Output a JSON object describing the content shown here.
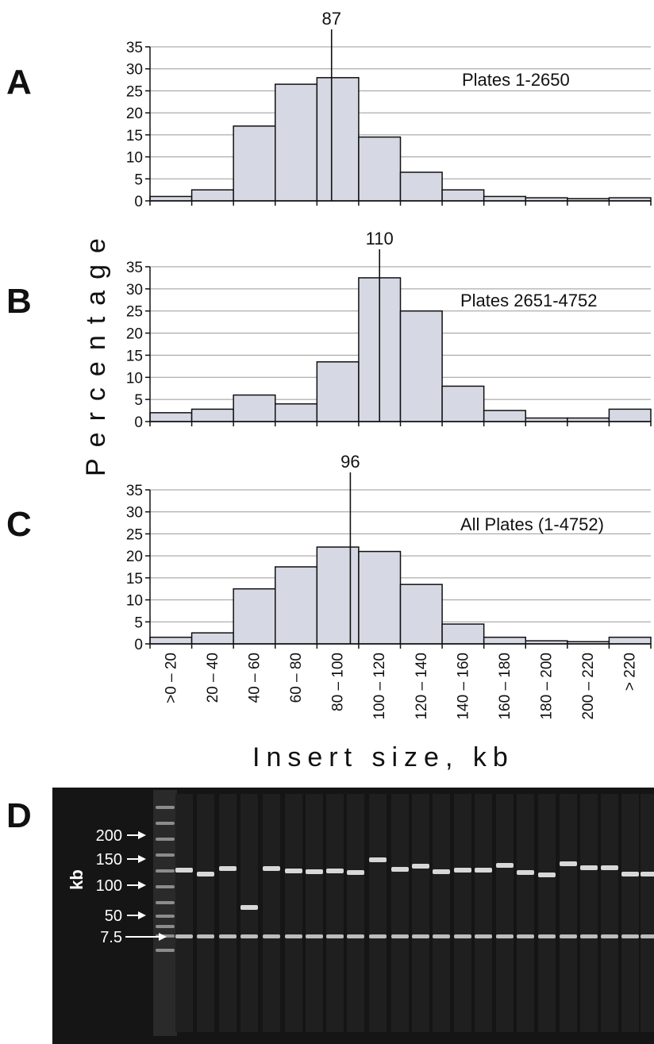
{
  "chart_data": [
    {
      "type": "bar",
      "panel": "A",
      "label": "Plates 1-2650",
      "median_marker": 87,
      "median_label": "87",
      "categories": [
        ">0 – 20",
        "20 – 40",
        "40 – 60",
        "60 – 80",
        "80 – 100",
        "100 – 120",
        "120 – 140",
        "140 – 160",
        "160 – 180",
        "180 – 200",
        "200 – 220",
        "> 220"
      ],
      "values": [
        1,
        2.5,
        17,
        26.5,
        28,
        14.5,
        6.5,
        2.5,
        1,
        0.7,
        0.5,
        0.7
      ],
      "ylim": [
        0,
        35
      ],
      "yticks": [
        "0",
        "5",
        "10",
        "15",
        "20",
        "25",
        "30",
        "35"
      ],
      "grid": true
    },
    {
      "type": "bar",
      "panel": "B",
      "label": "Plates 2651-4752",
      "median_marker": 110,
      "median_label": "110",
      "categories": [
        ">0 – 20",
        "20 – 40",
        "40 – 60",
        "60 – 80",
        "80 – 100",
        "100 – 120",
        "120 – 140",
        "140 – 160",
        "160 – 180",
        "180 – 200",
        "200 – 220",
        "> 220"
      ],
      "values": [
        2,
        2.8,
        6,
        4,
        13.5,
        32.5,
        25,
        8,
        2.5,
        0.8,
        0.8,
        2.8
      ],
      "ylim": [
        0,
        35
      ],
      "yticks": [
        "0",
        "5",
        "10",
        "15",
        "20",
        "25",
        "30",
        "35"
      ],
      "grid": true
    },
    {
      "type": "bar",
      "panel": "C",
      "label": "All Plates (1-4752)",
      "median_marker": 96,
      "median_label": "96",
      "categories": [
        ">0 – 20",
        "20 – 40",
        "40 – 60",
        "60 – 80",
        "80 – 100",
        "100 – 120",
        "120 – 140",
        "140 – 160",
        "160 – 180",
        "180 – 200",
        "200 – 220",
        "> 220"
      ],
      "values": [
        1.5,
        2.5,
        12.5,
        17.5,
        22,
        21,
        13.5,
        4.5,
        1.5,
        0.7,
        0.5,
        1.5
      ],
      "ylim": [
        0,
        35
      ],
      "yticks": [
        "0",
        "5",
        "10",
        "15",
        "20",
        "25",
        "30",
        "35"
      ],
      "grid": true
    }
  ],
  "ylabel": "Percentage",
  "xlabel": "Insert size, kb",
  "gel": {
    "panel": "D",
    "unit": "kb",
    "markers": [
      "200",
      "150",
      "100",
      "50",
      "7.5"
    ]
  }
}
